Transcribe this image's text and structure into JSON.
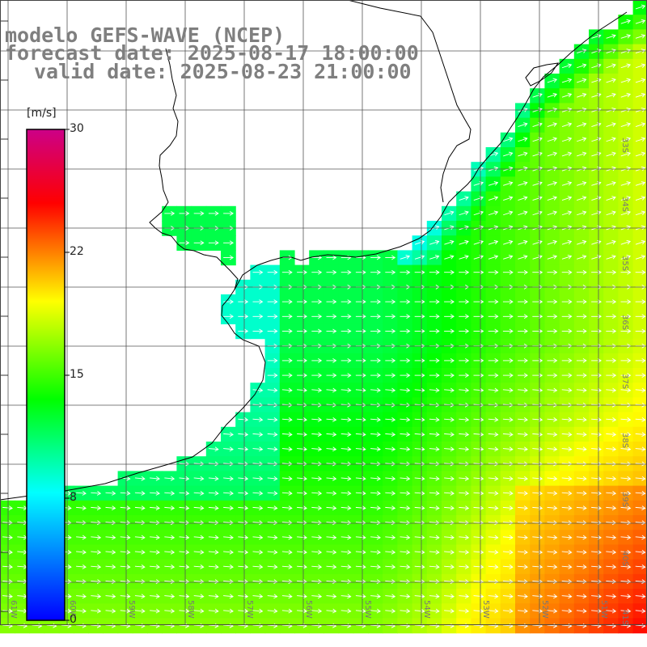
{
  "title": {
    "model": "modelo GEFS-WAVE (NCEP)",
    "forecast": "forecast date: 2025-08-17 18:00:00",
    "valid": "valid date: 2025-08-23 21:00:00"
  },
  "colorbar": {
    "unit": "[m/s]",
    "ticks": [
      "30",
      "22",
      "15",
      "8",
      "0"
    ],
    "colors": [
      "#0000ff",
      "#00ffff",
      "#00ff00",
      "#ffff00",
      "#ff0000",
      "#cc0088"
    ]
  },
  "lon_labels": [
    "61W",
    "60W",
    "59W",
    "58W",
    "57W",
    "56W",
    "55W",
    "54W",
    "53W",
    "52W",
    "51W"
  ],
  "lat_labels": [
    "33S",
    "34S",
    "35S",
    "36S",
    "37S",
    "38S",
    "39S",
    "40S",
    "41S"
  ],
  "legend": {
    "arrow_meaning": "wind direction"
  },
  "colors": {
    "coast": "#000000",
    "grid": "#555555",
    "arrow": "#ffffff",
    "title": "#7f7f7f"
  }
}
